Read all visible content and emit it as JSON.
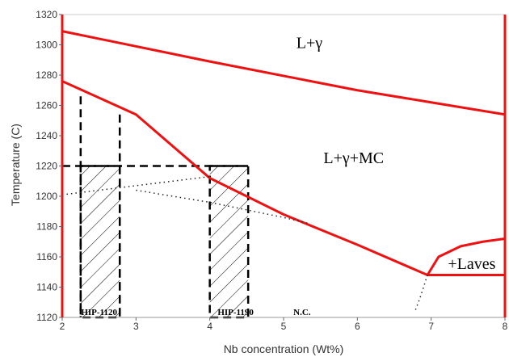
{
  "chart_data": {
    "type": "line",
    "title": "",
    "xlabel": "Nb concentration (Wt%)",
    "ylabel": "Temperature (C)",
    "xlim": [
      2,
      8
    ],
    "ylim": [
      1120,
      1320
    ],
    "x_ticks": [
      "2",
      "3",
      "4",
      "5",
      "6",
      "7",
      "8"
    ],
    "y_ticks": [
      "1120",
      "1140",
      "1160",
      "1180",
      "1200",
      "1220",
      "1240",
      "1260",
      "1280",
      "1300",
      "1320"
    ],
    "grid": false,
    "colors": {
      "phase_line": "#ee1111",
      "frame": "#ee1111",
      "guide": "#000000"
    },
    "series": [
      {
        "style": "solid",
        "points": [
          [
            2.0,
            1309
          ],
          [
            4.0,
            1289
          ],
          [
            6.0,
            1270
          ],
          [
            7.0,
            1262
          ],
          [
            8.0,
            1254
          ]
        ]
      },
      {
        "style": "solid",
        "points": [
          [
            2.0,
            1276
          ],
          [
            3.0,
            1254
          ],
          [
            4.0,
            1212
          ],
          [
            5.0,
            1188
          ],
          [
            6.0,
            1168
          ],
          [
            6.95,
            1148
          ]
        ]
      },
      {
        "style": "solid",
        "points": [
          [
            6.95,
            1148
          ],
          [
            7.1,
            1160
          ],
          [
            7.4,
            1167
          ],
          [
            7.7,
            1170
          ],
          [
            8.0,
            1172
          ]
        ]
      },
      {
        "style": "solid",
        "points": [
          [
            6.95,
            1148
          ],
          [
            8.0,
            1148
          ]
        ]
      },
      {
        "style": "dotted",
        "points": [
          [
            2.0,
            1201
          ],
          [
            3.0,
            1207
          ],
          [
            4.0,
            1213
          ]
        ]
      },
      {
        "style": "dotted",
        "points": [
          [
            3.0,
            1204
          ],
          [
            4.0,
            1196
          ],
          [
            5.0,
            1186
          ],
          [
            5.35,
            1182
          ]
        ]
      },
      {
        "style": "dotted",
        "points": [
          [
            6.95,
            1148
          ],
          [
            6.85,
            1133
          ],
          [
            6.78,
            1124
          ]
        ]
      }
    ],
    "hatched_boxes": [
      {
        "x": [
          2.25,
          2.78
        ],
        "y": [
          1120,
          1220
        ]
      },
      {
        "x": [
          4.0,
          4.52
        ],
        "y": [
          1120,
          1220
        ]
      }
    ],
    "guide_lines": [
      {
        "points": [
          [
            2.25,
            1266
          ],
          [
            2.25,
            1120
          ]
        ]
      },
      {
        "points": [
          [
            2.78,
            1254
          ],
          [
            2.78,
            1120
          ]
        ]
      },
      {
        "points": [
          [
            2.0,
            1220
          ],
          [
            4.52,
            1220
          ]
        ]
      }
    ],
    "annotations": [
      {
        "text": "L+γ",
        "x": 5.35,
        "y": 1298,
        "kind": "region"
      },
      {
        "text": "L+γ+MC",
        "x": 5.95,
        "y": 1222,
        "kind": "region"
      },
      {
        "text": "+Laves",
        "x": 7.55,
        "y": 1152,
        "kind": "region"
      },
      {
        "text": "HIP-1120",
        "x": 2.5,
        "y": 1121.5,
        "kind": "label"
      },
      {
        "text": "HIP-1190",
        "x": 4.35,
        "y": 1121.5,
        "kind": "label"
      },
      {
        "text": "N.C.",
        "x": 5.25,
        "y": 1121.5,
        "kind": "label"
      }
    ]
  }
}
